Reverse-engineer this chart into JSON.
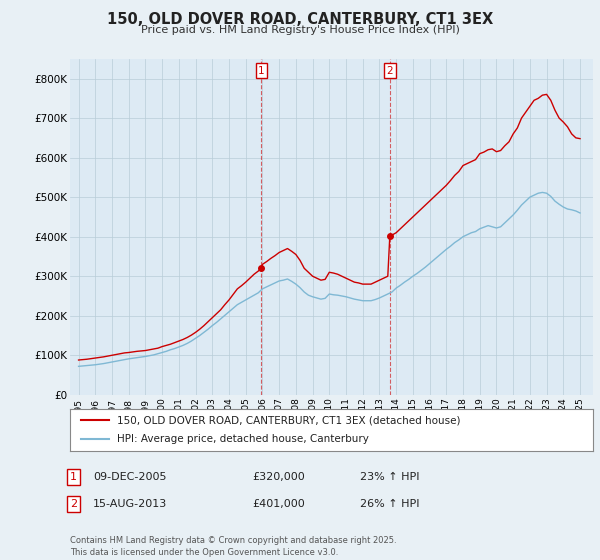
{
  "title": "150, OLD DOVER ROAD, CANTERBURY, CT1 3EX",
  "subtitle": "Price paid vs. HM Land Registry's House Price Index (HPI)",
  "background_color": "#e8f0f5",
  "plot_bg_color": "#ddeaf4",
  "red_line_label": "150, OLD DOVER ROAD, CANTERBURY, CT1 3EX (detached house)",
  "blue_line_label": "HPI: Average price, detached house, Canterbury",
  "annotation1": {
    "label": "1",
    "date": "09-DEC-2005",
    "price": "£320,000",
    "hpi": "23% ↑ HPI",
    "x_year": 2005.94
  },
  "annotation2": {
    "label": "2",
    "date": "15-AUG-2013",
    "price": "£401,000",
    "hpi": "26% ↑ HPI",
    "x_year": 2013.62
  },
  "footnote": "Contains HM Land Registry data © Crown copyright and database right 2025.\nThis data is licensed under the Open Government Licence v3.0.",
  "ylim": [
    0,
    850000
  ],
  "yticks": [
    0,
    100000,
    200000,
    300000,
    400000,
    500000,
    600000,
    700000,
    800000
  ],
  "ytick_labels": [
    "£0",
    "£100K",
    "£200K",
    "£300K",
    "£400K",
    "£500K",
    "£600K",
    "£700K",
    "£800K"
  ],
  "xlim_start": 1994.5,
  "xlim_end": 2025.8,
  "red_color": "#cc0000",
  "blue_color": "#7fb8d4",
  "red_x": [
    1995.0,
    1995.25,
    1995.5,
    1995.75,
    1996.0,
    1996.25,
    1996.5,
    1996.75,
    1997.0,
    1997.25,
    1997.5,
    1997.75,
    1998.0,
    1998.25,
    1998.5,
    1998.75,
    1999.0,
    1999.25,
    1999.5,
    1999.75,
    2000.0,
    2000.25,
    2000.5,
    2000.75,
    2001.0,
    2001.25,
    2001.5,
    2001.75,
    2002.0,
    2002.25,
    2002.5,
    2002.75,
    2003.0,
    2003.25,
    2003.5,
    2003.75,
    2004.0,
    2004.25,
    2004.5,
    2004.75,
    2005.0,
    2005.25,
    2005.5,
    2005.75,
    2005.94,
    2006.0,
    2006.25,
    2006.5,
    2006.75,
    2007.0,
    2007.25,
    2007.5,
    2007.75,
    2008.0,
    2008.25,
    2008.5,
    2008.75,
    2009.0,
    2009.25,
    2009.5,
    2009.75,
    2010.0,
    2010.25,
    2010.5,
    2010.75,
    2011.0,
    2011.25,
    2011.5,
    2011.75,
    2012.0,
    2012.25,
    2012.5,
    2012.75,
    2013.0,
    2013.25,
    2013.5,
    2013.62,
    2014.0,
    2014.25,
    2014.5,
    2014.75,
    2015.0,
    2015.25,
    2015.5,
    2015.75,
    2016.0,
    2016.25,
    2016.5,
    2016.75,
    2017.0,
    2017.25,
    2017.5,
    2017.75,
    2018.0,
    2018.25,
    2018.5,
    2018.75,
    2019.0,
    2019.25,
    2019.5,
    2019.75,
    2020.0,
    2020.25,
    2020.5,
    2020.75,
    2021.0,
    2021.25,
    2021.5,
    2021.75,
    2022.0,
    2022.25,
    2022.5,
    2022.75,
    2023.0,
    2023.25,
    2023.5,
    2023.75,
    2024.0,
    2024.25,
    2024.5,
    2024.75,
    2025.0
  ],
  "red_y": [
    88000,
    89000,
    90000,
    91500,
    93000,
    94500,
    96000,
    98000,
    100000,
    102000,
    104000,
    106000,
    107000,
    108500,
    110000,
    111000,
    112000,
    114000,
    116000,
    118000,
    122000,
    125000,
    128000,
    132000,
    136000,
    140000,
    145000,
    151000,
    158000,
    166000,
    175000,
    185000,
    195000,
    205000,
    215000,
    228000,
    240000,
    254000,
    268000,
    276000,
    285000,
    295000,
    305000,
    313000,
    320000,
    330000,
    337000,
    345000,
    352000,
    360000,
    365000,
    370000,
    363000,
    355000,
    340000,
    320000,
    310000,
    300000,
    295000,
    290000,
    292000,
    310000,
    308000,
    305000,
    300000,
    295000,
    290000,
    285000,
    283000,
    280000,
    280000,
    280000,
    285000,
    290000,
    295000,
    300000,
    401000,
    410000,
    420000,
    430000,
    440000,
    450000,
    460000,
    470000,
    480000,
    490000,
    500000,
    510000,
    520000,
    530000,
    542000,
    555000,
    565000,
    580000,
    585000,
    590000,
    595000,
    610000,
    614000,
    620000,
    622000,
    615000,
    618000,
    630000,
    640000,
    660000,
    675000,
    700000,
    715000,
    730000,
    745000,
    750000,
    758000,
    760000,
    745000,
    720000,
    700000,
    690000,
    678000,
    660000,
    650000,
    648000
  ],
  "blue_x": [
    1995.0,
    1995.25,
    1995.5,
    1995.75,
    1996.0,
    1996.25,
    1996.5,
    1996.75,
    1997.0,
    1997.25,
    1997.5,
    1997.75,
    1998.0,
    1998.25,
    1998.5,
    1998.75,
    1999.0,
    1999.25,
    1999.5,
    1999.75,
    2000.0,
    2000.25,
    2000.5,
    2000.75,
    2001.0,
    2001.25,
    2001.5,
    2001.75,
    2002.0,
    2002.25,
    2002.5,
    2002.75,
    2003.0,
    2003.25,
    2003.5,
    2003.75,
    2004.0,
    2004.25,
    2004.5,
    2004.75,
    2005.0,
    2005.25,
    2005.5,
    2005.75,
    2006.0,
    2006.25,
    2006.5,
    2006.75,
    2007.0,
    2007.25,
    2007.5,
    2007.75,
    2008.0,
    2008.25,
    2008.5,
    2008.75,
    2009.0,
    2009.25,
    2009.5,
    2009.75,
    2010.0,
    2010.25,
    2010.5,
    2010.75,
    2011.0,
    2011.25,
    2011.5,
    2011.75,
    2012.0,
    2012.25,
    2012.5,
    2012.75,
    2013.0,
    2013.25,
    2013.5,
    2013.75,
    2014.0,
    2014.25,
    2014.5,
    2014.75,
    2015.0,
    2015.25,
    2015.5,
    2015.75,
    2016.0,
    2016.25,
    2016.5,
    2016.75,
    2017.0,
    2017.25,
    2017.5,
    2017.75,
    2018.0,
    2018.25,
    2018.5,
    2018.75,
    2019.0,
    2019.25,
    2019.5,
    2019.75,
    2020.0,
    2020.25,
    2020.5,
    2020.75,
    2021.0,
    2021.25,
    2021.5,
    2021.75,
    2022.0,
    2022.25,
    2022.5,
    2022.75,
    2023.0,
    2023.25,
    2023.5,
    2023.75,
    2024.0,
    2024.25,
    2024.5,
    2024.75,
    2025.0
  ],
  "blue_y": [
    72000,
    73000,
    74000,
    75000,
    76000,
    77500,
    79000,
    81000,
    83000,
    85000,
    87000,
    89000,
    91000,
    92500,
    94000,
    95500,
    97000,
    99000,
    101000,
    104000,
    107000,
    110000,
    114000,
    117000,
    121000,
    125000,
    130000,
    136000,
    143000,
    150000,
    158000,
    166000,
    175000,
    183000,
    192000,
    201000,
    210000,
    219000,
    228000,
    234000,
    240000,
    246000,
    252000,
    258000,
    268000,
    273000,
    278000,
    283000,
    288000,
    290000,
    293000,
    287000,
    280000,
    271000,
    260000,
    252000,
    248000,
    245000,
    242000,
    244000,
    255000,
    253000,
    252000,
    250000,
    248000,
    245000,
    242000,
    240000,
    238000,
    238000,
    238000,
    241000,
    245000,
    250000,
    255000,
    260000,
    270000,
    277000,
    285000,
    292000,
    300000,
    307000,
    315000,
    323000,
    332000,
    341000,
    350000,
    359000,
    368000,
    376000,
    385000,
    392000,
    400000,
    405000,
    410000,
    413000,
    420000,
    424000,
    428000,
    425000,
    422000,
    425000,
    435000,
    445000,
    455000,
    467000,
    480000,
    490000,
    500000,
    505000,
    510000,
    512000,
    510000,
    502000,
    490000,
    482000,
    475000,
    470000,
    468000,
    465000,
    460000
  ]
}
